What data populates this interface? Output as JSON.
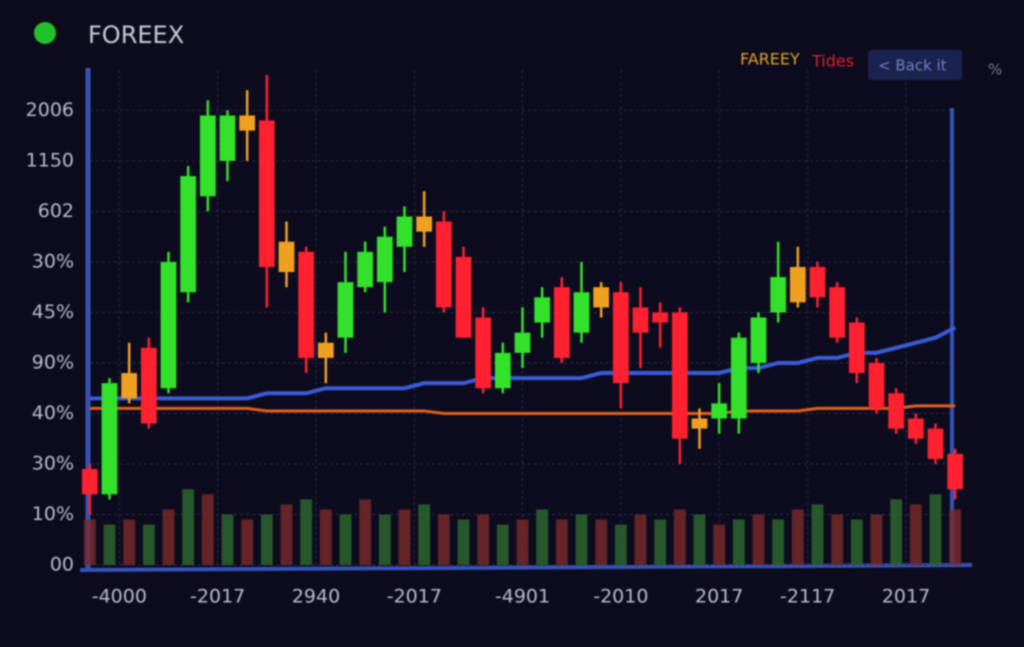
{
  "chart_data": {
    "type": "candlestick",
    "title": "FOREEX",
    "legend": [
      {
        "name": "FAREEY",
        "color": "#e0a020"
      },
      {
        "name": "Tides",
        "color": "#e0202a"
      }
    ],
    "button": "< Back it",
    "corner_text": "%",
    "ylim": [
      0,
      9.8
    ],
    "yticks": [
      {
        "value": 0,
        "label": "00"
      },
      {
        "value": 1,
        "label": "10%"
      },
      {
        "value": 2,
        "label": "30%"
      },
      {
        "value": 3,
        "label": "40%"
      },
      {
        "value": 4,
        "label": "90%"
      },
      {
        "value": 5,
        "label": "45%"
      },
      {
        "value": 6,
        "label": "30%"
      },
      {
        "value": 7,
        "label": "602"
      },
      {
        "value": 8,
        "label": "1150"
      },
      {
        "value": 9,
        "label": "2006"
      }
    ],
    "xlim": [
      -0.5,
      44.5
    ],
    "xticks": [
      {
        "value": 1.5,
        "label": "-4000"
      },
      {
        "value": 6.5,
        "label": "-2017"
      },
      {
        "value": 11.5,
        "label": "2940"
      },
      {
        "value": 16.5,
        "label": "-2017"
      },
      {
        "value": 22,
        "label": "-4901"
      },
      {
        "value": 27,
        "label": "-2010"
      },
      {
        "value": 32,
        "label": "2017"
      },
      {
        "value": 36.5,
        "label": "-2117"
      },
      {
        "value": 41.5,
        "label": "2017"
      }
    ],
    "grid": true,
    "open": [
      1.9,
      1.4,
      3.3,
      4.3,
      3.5,
      5.4,
      7.3,
      8.0,
      8.6,
      8.8,
      6.4,
      6.2,
      4.4,
      4.5,
      5.5,
      5.6,
      6.3,
      6.6,
      6.8,
      6.1,
      4.9,
      3.5,
      4.2,
      4.8,
      5.5,
      4.6,
      5.1,
      5.4,
      5.1,
      5.0,
      5.0,
      2.7,
      2.9,
      2.9,
      4.0,
      5.0,
      5.2,
      5.9,
      5.5,
      4.8,
      4.0,
      3.4,
      2.9,
      2.7,
      2.2
    ],
    "high": [
      2.0,
      3.7,
      4.4,
      4.5,
      6.2,
      7.9,
      9.2,
      9.0,
      9.4,
      9.7,
      6.8,
      6.3,
      4.6,
      6.2,
      6.4,
      6.7,
      7.1,
      7.4,
      7.0,
      6.3,
      5.1,
      4.4,
      5.1,
      5.5,
      5.7,
      6.0,
      5.6,
      5.6,
      5.5,
      5.2,
      5.1,
      3.1,
      3.6,
      4.6,
      5.0,
      6.4,
      6.3,
      6.0,
      5.6,
      4.9,
      4.1,
      3.5,
      3.0,
      2.8,
      2.3
    ],
    "low": [
      1.0,
      1.3,
      3.2,
      2.7,
      3.4,
      5.2,
      7.0,
      7.6,
      8.0,
      5.1,
      5.5,
      3.8,
      3.6,
      4.2,
      5.4,
      5.0,
      5.8,
      6.3,
      5.0,
      4.5,
      3.4,
      3.4,
      3.9,
      4.5,
      4.0,
      4.4,
      4.9,
      3.1,
      3.9,
      4.3,
      2.0,
      2.3,
      2.6,
      2.6,
      3.8,
      4.8,
      5.1,
      5.1,
      4.4,
      3.6,
      3.0,
      2.6,
      2.4,
      2.0,
      1.3
    ],
    "close": [
      1.4,
      3.6,
      3.8,
      2.8,
      6.0,
      7.7,
      8.9,
      8.9,
      8.9,
      5.9,
      5.8,
      4.1,
      4.1,
      5.6,
      6.2,
      6.5,
      6.9,
      6.9,
      5.1,
      4.5,
      3.5,
      4.2,
      4.6,
      5.3,
      4.1,
      5.4,
      5.5,
      3.6,
      4.6,
      4.8,
      2.5,
      2.9,
      3.2,
      4.5,
      4.9,
      5.7,
      5.9,
      5.3,
      4.5,
      3.8,
      3.1,
      2.7,
      2.5,
      2.1,
      1.5
    ],
    "colors": [
      "#ff2030",
      "#33e02a",
      "#f0a020",
      "#ff2030",
      "#33e02a",
      "#33e02a",
      "#33e02a",
      "#33e02a",
      "#f0a020",
      "#ff2030",
      "#f0a020",
      "#ff2030",
      "#f0a020",
      "#33e02a",
      "#33e02a",
      "#33e02a",
      "#33e02a",
      "#f0a020",
      "#ff2030",
      "#ff2030",
      "#ff2030",
      "#33e02a",
      "#33e02a",
      "#33e02a",
      "#ff2030",
      "#33e02a",
      "#f0a020",
      "#ff2030",
      "#ff2030",
      "#ff2030",
      "#ff2030",
      "#f0a020",
      "#33e02a",
      "#33e02a",
      "#33e02a",
      "#33e02a",
      "#f0a020",
      "#ff2030",
      "#ff2030",
      "#ff2030",
      "#ff2030",
      "#ff2030",
      "#ff2030",
      "#ff2030",
      "#ff2030"
    ],
    "series": [
      {
        "name": "FAREEY",
        "color": "#3a5ad8",
        "values": [
          3.3,
          3.3,
          3.3,
          3.3,
          3.3,
          3.3,
          3.3,
          3.3,
          3.3,
          3.4,
          3.4,
          3.4,
          3.5,
          3.5,
          3.5,
          3.5,
          3.5,
          3.6,
          3.6,
          3.6,
          3.7,
          3.7,
          3.7,
          3.7,
          3.7,
          3.7,
          3.8,
          3.8,
          3.8,
          3.8,
          3.8,
          3.8,
          3.8,
          3.9,
          3.9,
          4.0,
          4.0,
          4.1,
          4.1,
          4.2,
          4.2,
          4.3,
          4.4,
          4.5,
          4.7
        ]
      },
      {
        "name": "Tides",
        "color": "#e0601a",
        "values": [
          3.1,
          3.1,
          3.1,
          3.1,
          3.1,
          3.1,
          3.1,
          3.1,
          3.1,
          3.05,
          3.05,
          3.05,
          3.05,
          3.05,
          3.05,
          3.05,
          3.05,
          3.05,
          3.0,
          3.0,
          3.0,
          3.0,
          3.0,
          3.0,
          3.0,
          3.0,
          3.0,
          3.0,
          3.0,
          3.0,
          3.0,
          3.0,
          3.0,
          3.05,
          3.05,
          3.05,
          3.05,
          3.1,
          3.1,
          3.1,
          3.1,
          3.1,
          3.15,
          3.15,
          3.15
        ]
      }
    ],
    "volume": [
      0.9,
      0.8,
      0.9,
      0.8,
      1.1,
      1.5,
      1.4,
      1.0,
      0.9,
      1.0,
      1.2,
      1.3,
      1.1,
      1.0,
      1.3,
      1.0,
      1.1,
      1.2,
      1.0,
      0.9,
      1.0,
      0.8,
      0.9,
      1.1,
      0.9,
      1.0,
      0.9,
      0.8,
      1.0,
      0.9,
      1.1,
      1.0,
      0.8,
      0.9,
      1.0,
      0.9,
      1.1,
      1.2,
      1.0,
      0.9,
      1.0,
      1.3,
      1.2,
      1.4,
      1.1
    ],
    "volume_colors": [
      "#7a2a2a",
      "#2e6a2e"
    ]
  }
}
